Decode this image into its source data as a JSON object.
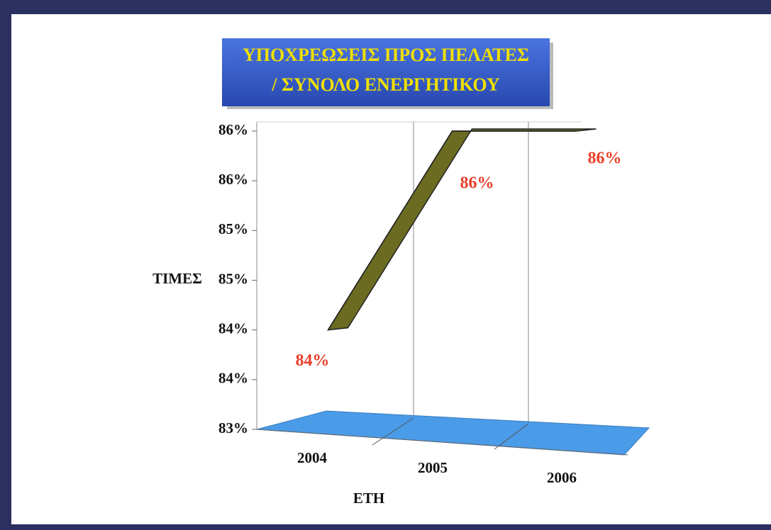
{
  "chart_data": {
    "type": "line",
    "title": [
      "ΥΠΟΧΡΕΩΣΕΙΣ ΠΡΟΣ ΠΕΛΑΤΕΣ",
      "/ ΣΥΝΟΛΟ ΕΝΕΡΓΗΤΙΚΟΥ"
    ],
    "ylabel": "ΤΙΜΕΣ",
    "xlabel": "ΕΤΗ",
    "categories": [
      "2004",
      "2005",
      "2006"
    ],
    "values": [
      84.0,
      86.0,
      86.0
    ],
    "value_labels": [
      "84%",
      "86%",
      "86%"
    ],
    "color": "#6b6b22",
    "ylim": [
      83,
      86
    ],
    "yticks": [
      {
        "value": 83,
        "label": "83%"
      },
      {
        "value": 83.5,
        "label": "84%"
      },
      {
        "value": 84,
        "label": "84%"
      },
      {
        "value": 84.5,
        "label": "85%"
      },
      {
        "value": 85,
        "label": "85%"
      },
      {
        "value": 85.5,
        "label": "86%"
      },
      {
        "value": 86,
        "label": "86%"
      }
    ]
  }
}
